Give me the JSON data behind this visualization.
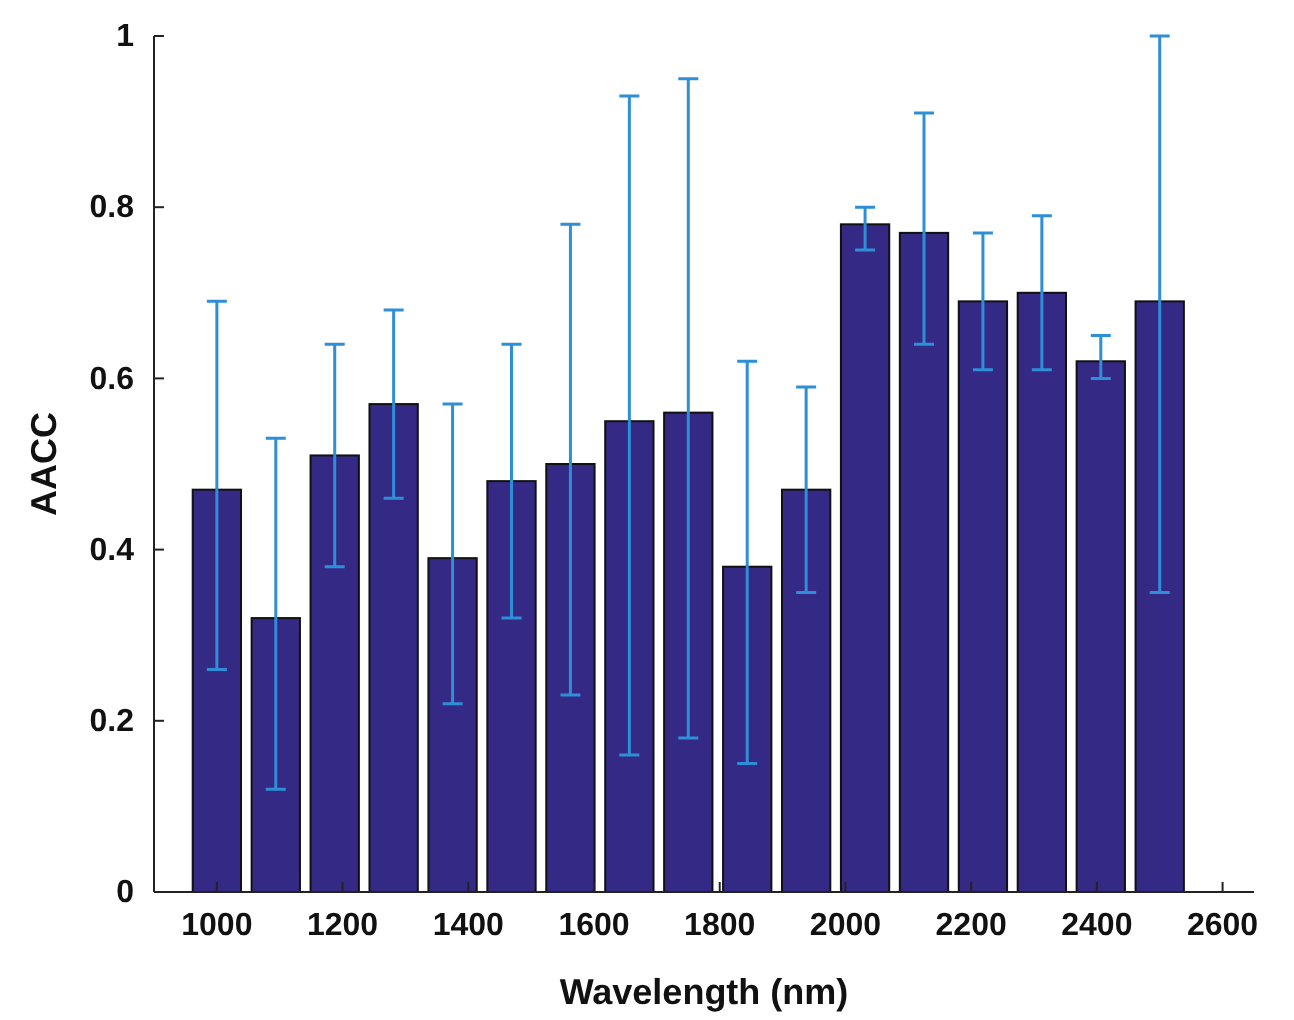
{
  "chart_data": {
    "type": "bar",
    "xlabel": "Wavelength (nm)",
    "ylabel": "AACC",
    "x": [
      1000,
      1093.75,
      1187.5,
      1281.25,
      1375,
      1468.75,
      1562.5,
      1656.25,
      1750,
      1843.75,
      1937.5,
      2031.25,
      2125,
      2218.75,
      2312.5,
      2406.25,
      2500
    ],
    "series": [
      {
        "color": "#342a85",
        "values": [
          0.47,
          0.32,
          0.51,
          0.57,
          0.39,
          0.48,
          0.5,
          0.55,
          0.56,
          0.38,
          0.47,
          0.78,
          0.77,
          0.69,
          0.7,
          0.62,
          0.69
        ],
        "errors": [
          [
            0.26,
            0.69
          ],
          [
            0.12,
            0.53
          ],
          [
            0.38,
            0.64
          ],
          [
            0.46,
            0.68
          ],
          [
            0.22,
            0.57
          ],
          [
            0.32,
            0.64
          ],
          [
            0.23,
            0.78
          ],
          [
            0.16,
            0.93
          ],
          [
            0.18,
            0.95
          ],
          [
            0.15,
            0.62
          ],
          [
            0.35,
            0.59
          ],
          [
            0.75,
            0.8
          ],
          [
            0.64,
            0.91
          ],
          [
            0.61,
            0.77
          ],
          [
            0.61,
            0.79
          ],
          [
            0.6,
            0.65
          ],
          [
            0.35,
            1.0
          ]
        ]
      }
    ],
    "xlim": [
      900,
      2650
    ],
    "xticks": [
      1000,
      1200,
      1400,
      1600,
      1800,
      2000,
      2200,
      2400,
      2600
    ],
    "ylim": [
      0,
      1
    ],
    "yticks": [
      0,
      0.2,
      0.4,
      0.6,
      0.8,
      1
    ]
  }
}
